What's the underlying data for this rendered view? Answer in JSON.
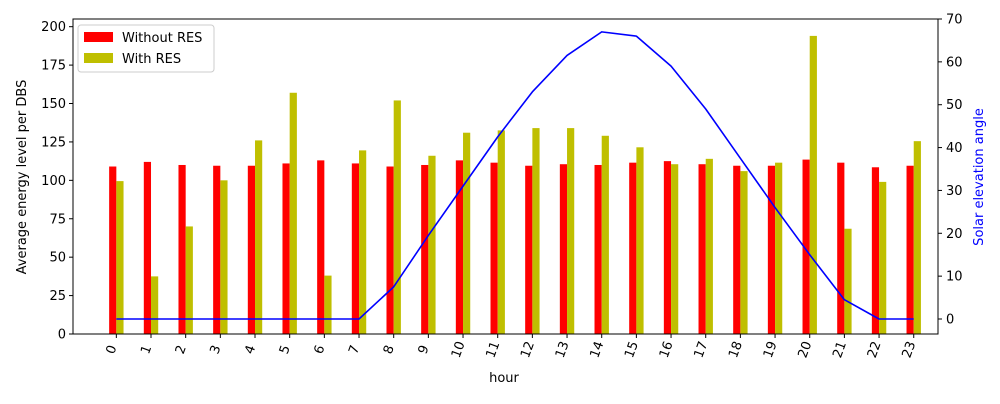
{
  "chart_data": {
    "type": "bar",
    "title": "",
    "xlabel": "hour",
    "ylabel": "Average energy level per DBS",
    "ylabel_right": "Solar elevation angle",
    "ylim": [
      0,
      205
    ],
    "ylim_right": [
      -3.5,
      70
    ],
    "yticks": [
      0,
      25,
      50,
      75,
      100,
      125,
      150,
      175,
      200
    ],
    "yticks_right": [
      0,
      10,
      20,
      30,
      40,
      50,
      60,
      70
    ],
    "grid": false,
    "legend_position": "top-left",
    "categories": [
      "0",
      "1",
      "2",
      "3",
      "4",
      "5",
      "6",
      "7",
      "8",
      "9",
      "10",
      "11",
      "12",
      "13",
      "14",
      "15",
      "16",
      "17",
      "18",
      "19",
      "20",
      "21",
      "22",
      "23"
    ],
    "series": [
      {
        "name": "Without RES",
        "type": "bar",
        "axis": "left",
        "color": "#ff0000",
        "values": [
          109,
          112,
          110,
          109.5,
          109.5,
          111,
          113,
          111,
          109,
          110,
          113,
          111.5,
          109.5,
          110.5,
          110,
          111.5,
          112.5,
          110.5,
          109.5,
          109.5,
          113.5,
          111.5,
          108.5,
          109.5
        ]
      },
      {
        "name": "With RES",
        "type": "bar",
        "axis": "left",
        "color": "#bfbf00",
        "values": [
          99.5,
          37.5,
          70,
          100,
          126,
          157,
          38,
          119.5,
          152,
          116,
          131,
          132.5,
          134,
          134,
          129,
          121.5,
          110.5,
          114,
          106,
          111.5,
          194,
          68.5,
          99,
          125.5
        ]
      },
      {
        "name": "",
        "type": "line",
        "axis": "right",
        "color": "#0000ff",
        "values": [
          0,
          0,
          0,
          0,
          0,
          0,
          0,
          0,
          7.5,
          19.5,
          31,
          42.5,
          53,
          61.5,
          67,
          66,
          59,
          49,
          37.5,
          26,
          15,
          4.5,
          0,
          0
        ]
      }
    ]
  }
}
